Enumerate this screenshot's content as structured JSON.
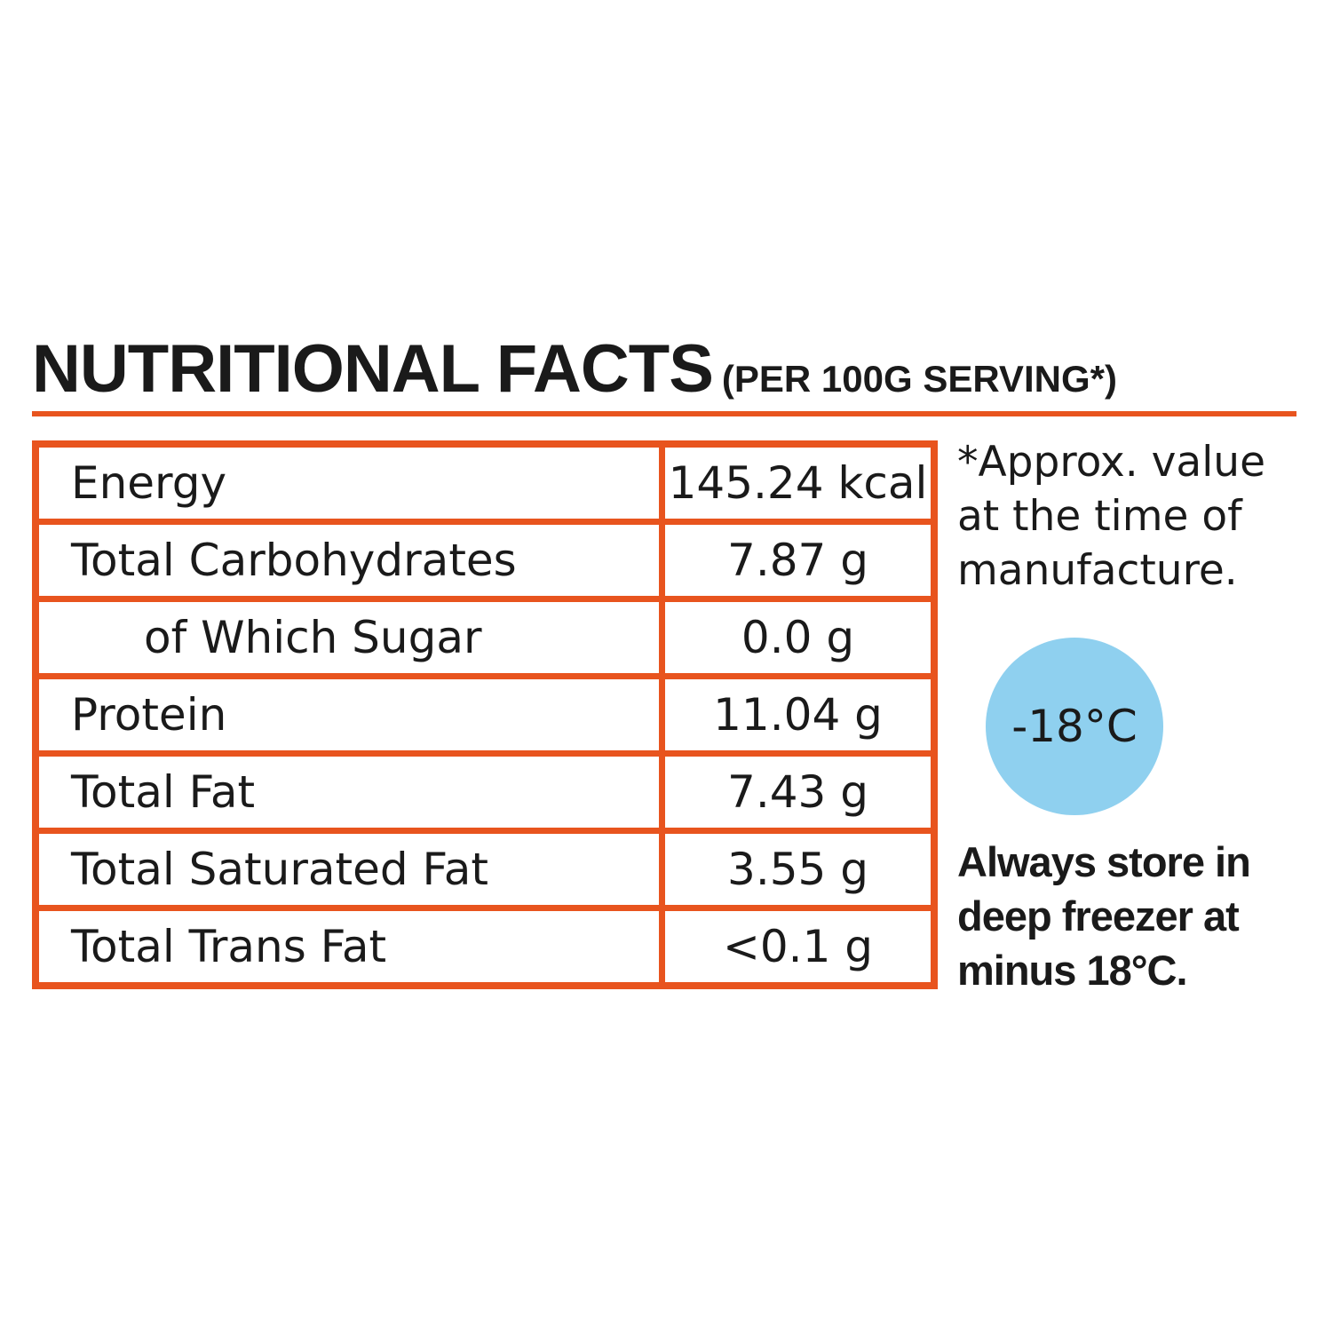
{
  "header": {
    "title": "NUTRITIONAL FACTS",
    "subtitle": "(PER 100G SERVING*)"
  },
  "table": {
    "rows": [
      [
        "Energy",
        "145.24 kcal"
      ],
      [
        "Total Carbohydrates",
        "7.87 g"
      ],
      [
        "of Which Sugar",
        "0.0 g"
      ],
      [
        "Protein",
        "11.04 g"
      ],
      [
        "Total Fat",
        "7.43 g"
      ],
      [
        "Total Saturated Fat",
        "3.55 g"
      ],
      [
        "Total Trans Fat",
        "<0.1 g"
      ]
    ]
  },
  "note": {
    "lines": [
      "*Approx. value",
      "at the time of",
      "manufacture."
    ]
  },
  "badge": "-18°C",
  "storage": {
    "lines": [
      "Always store in",
      "deep freezer at",
      "minus 18°C."
    ]
  }
}
